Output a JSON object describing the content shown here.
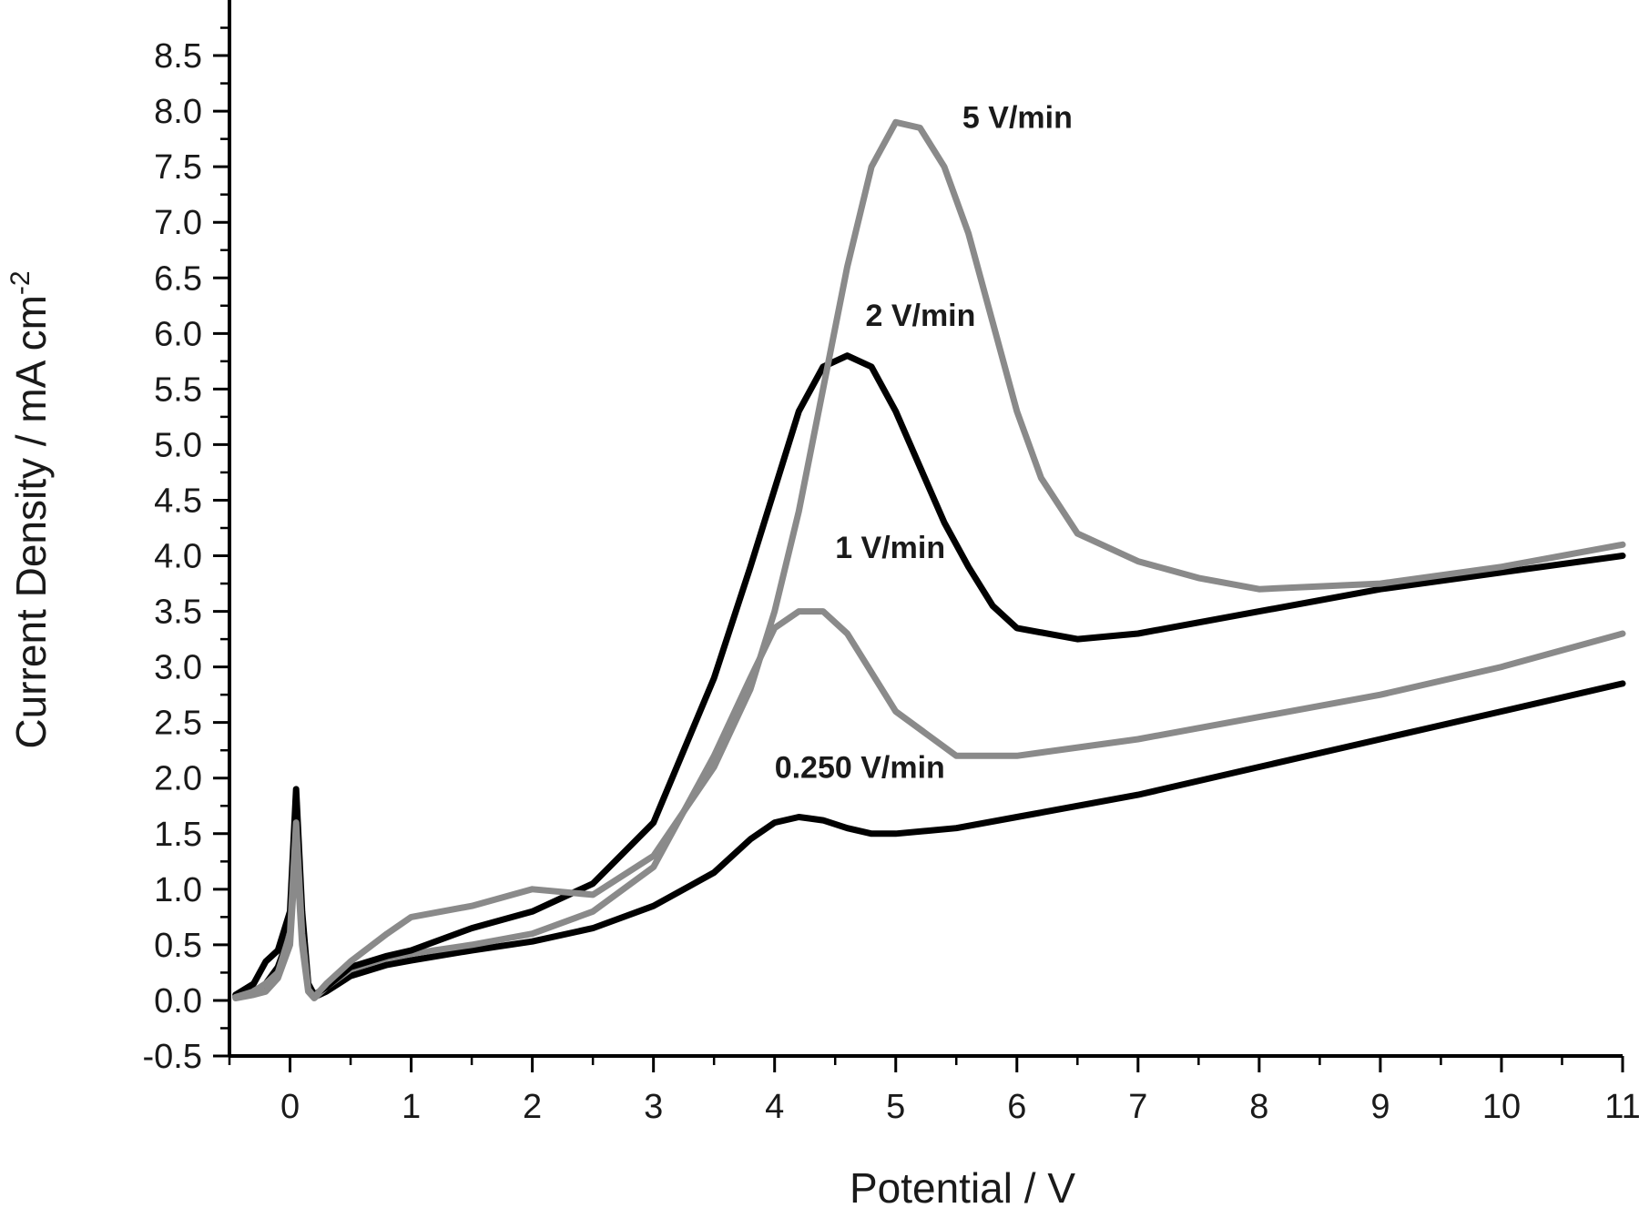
{
  "chart_data": {
    "type": "line",
    "title": "",
    "xlabel": "Potential  / V",
    "ylabel": "Current Density / mA cm",
    "ylabel_superscript": "-2",
    "xlim": [
      -0.5,
      11
    ],
    "ylim": [
      -0.5,
      9.0
    ],
    "x_ticks": [
      0,
      1,
      2,
      3,
      4,
      5,
      6,
      7,
      8,
      9,
      10,
      11
    ],
    "x_tick_labels": [
      "0",
      "1",
      "2",
      "3",
      "4",
      "5",
      "6",
      "7",
      "8",
      "9",
      "10",
      "11"
    ],
    "y_ticks": [
      -0.5,
      0.0,
      0.5,
      1.0,
      1.5,
      2.0,
      2.5,
      3.0,
      3.5,
      4.0,
      4.5,
      5.0,
      5.5,
      6.0,
      6.5,
      7.0,
      7.5,
      8.0,
      8.5
    ],
    "y_tick_labels": [
      "-0.5",
      "0.0",
      "0.5",
      "1.0",
      "1.5",
      "2.0",
      "2.5",
      "3.0",
      "3.5",
      "4.0",
      "4.5",
      "5.0",
      "5.5",
      "6.0",
      "6.5",
      "7.0",
      "7.5",
      "8.0",
      "8.5"
    ],
    "grid": false,
    "series": [
      {
        "name": "0.250 V/min",
        "color": "#000000",
        "label_at": [
          4.0,
          2.0
        ],
        "x": [
          -0.45,
          -0.3,
          -0.2,
          -0.1,
          0.0,
          0.05,
          0.1,
          0.15,
          0.2,
          0.3,
          0.5,
          0.8,
          1.0,
          1.5,
          2.0,
          2.5,
          3.0,
          3.5,
          3.8,
          4.0,
          4.2,
          4.4,
          4.6,
          4.8,
          5.0,
          5.5,
          6.0,
          7.0,
          8.0,
          9.0,
          10.0,
          11.0
        ],
        "y": [
          0.03,
          0.08,
          0.15,
          0.3,
          0.6,
          1.85,
          0.6,
          0.1,
          0.03,
          0.08,
          0.22,
          0.32,
          0.36,
          0.45,
          0.53,
          0.65,
          0.85,
          1.15,
          1.45,
          1.6,
          1.65,
          1.62,
          1.55,
          1.5,
          1.5,
          1.55,
          1.65,
          1.85,
          2.1,
          2.35,
          2.6,
          2.85
        ]
      },
      {
        "name": "1 V/min",
        "color": "#8a8a8a",
        "label_at": [
          4.5,
          3.98
        ],
        "x": [
          -0.45,
          -0.3,
          -0.2,
          -0.1,
          0.0,
          0.05,
          0.1,
          0.15,
          0.2,
          0.3,
          0.5,
          0.8,
          1.0,
          1.5,
          2.0,
          2.5,
          3.0,
          3.5,
          3.8,
          4.0,
          4.2,
          4.4,
          4.6,
          4.8,
          5.0,
          5.5,
          6.0,
          7.0,
          8.0,
          9.0,
          10.0,
          11.0
        ],
        "y": [
          0.02,
          0.05,
          0.08,
          0.2,
          0.5,
          1.4,
          0.5,
          0.08,
          0.02,
          0.12,
          0.28,
          0.38,
          0.42,
          0.5,
          0.6,
          0.8,
          1.2,
          2.2,
          2.9,
          3.35,
          3.5,
          3.5,
          3.3,
          2.95,
          2.6,
          2.2,
          2.2,
          2.35,
          2.55,
          2.75,
          3.0,
          3.3
        ]
      },
      {
        "name": "2 V/min",
        "color": "#000000",
        "label_at": [
          4.75,
          6.07
        ],
        "x": [
          -0.45,
          -0.3,
          -0.2,
          -0.1,
          0.0,
          0.05,
          0.1,
          0.15,
          0.2,
          0.3,
          0.5,
          0.8,
          1.0,
          1.5,
          2.0,
          2.5,
          3.0,
          3.5,
          3.8,
          4.0,
          4.2,
          4.4,
          4.6,
          4.8,
          5.0,
          5.2,
          5.4,
          5.6,
          5.8,
          6.0,
          6.5,
          7.0,
          8.0,
          9.0,
          10.0,
          11.0
        ],
        "y": [
          0.05,
          0.15,
          0.35,
          0.45,
          0.8,
          1.9,
          0.8,
          0.15,
          0.05,
          0.12,
          0.3,
          0.4,
          0.45,
          0.65,
          0.8,
          1.05,
          1.6,
          2.9,
          3.9,
          4.6,
          5.3,
          5.7,
          5.8,
          5.7,
          5.3,
          4.8,
          4.3,
          3.9,
          3.55,
          3.35,
          3.25,
          3.3,
          3.5,
          3.7,
          3.85,
          4.0
        ]
      },
      {
        "name": "5 V/min",
        "color": "#8a8a8a",
        "label_at": [
          5.55,
          7.85
        ],
        "x": [
          -0.45,
          -0.3,
          -0.2,
          -0.1,
          0.0,
          0.05,
          0.1,
          0.15,
          0.2,
          0.3,
          0.5,
          0.8,
          1.0,
          1.5,
          2.0,
          2.5,
          3.0,
          3.5,
          3.8,
          4.0,
          4.2,
          4.4,
          4.6,
          4.8,
          5.0,
          5.2,
          5.4,
          5.6,
          5.8,
          6.0,
          6.2,
          6.5,
          7.0,
          7.5,
          8.0,
          9.0,
          10.0,
          11.0
        ],
        "y": [
          0.03,
          0.08,
          0.15,
          0.25,
          0.6,
          1.6,
          0.6,
          0.1,
          0.03,
          0.15,
          0.35,
          0.6,
          0.75,
          0.85,
          1.0,
          0.95,
          1.3,
          2.1,
          2.8,
          3.5,
          4.4,
          5.5,
          6.6,
          7.5,
          7.9,
          7.85,
          7.5,
          6.9,
          6.1,
          5.3,
          4.7,
          4.2,
          3.95,
          3.8,
          3.7,
          3.75,
          3.9,
          4.1
        ]
      }
    ]
  }
}
